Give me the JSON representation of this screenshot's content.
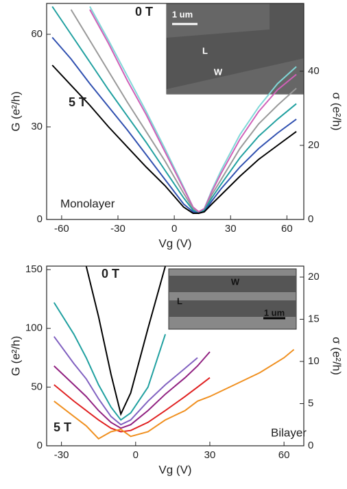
{
  "chart_data": [
    {
      "type": "line",
      "xlabel": "Vg (V)",
      "ylabel": "G (e²/h)",
      "y2label": "σ (e²/h)",
      "xlim": [
        -68,
        69
      ],
      "ylim": [
        0,
        70
      ],
      "y2lim": [
        0,
        58.3
      ],
      "xticks": [
        -60,
        -30,
        0,
        30,
        60
      ],
      "yticks": [
        0,
        30,
        60
      ],
      "y2ticks": [
        0,
        20,
        40
      ],
      "annotations": [
        "0 T",
        "5 T",
        "Monolayer"
      ],
      "inset_labels": [
        "1 um",
        "L",
        "W"
      ],
      "x": [
        -65,
        -55,
        -45,
        -35,
        -25,
        -15,
        -5,
        5,
        10,
        13,
        16,
        20,
        25,
        35,
        45,
        55,
        65
      ],
      "series": [
        {
          "color": "#80d8d8",
          "values": [
            null,
            null,
            69,
            58,
            46.5,
            35,
            23,
            10.5,
            4,
            2.5,
            3.5,
            9.5,
            16,
            27.5,
            36.5,
            44,
            49.5
          ]
        },
        {
          "color": "#d060b8",
          "values": [
            null,
            null,
            68,
            57,
            45,
            34,
            22,
            10,
            4,
            2.5,
            3.5,
            9,
            15,
            26,
            35,
            42,
            47
          ]
        },
        {
          "color": "#999999",
          "values": [
            null,
            68,
            58,
            48,
            38,
            28.5,
            19,
            8.5,
            3.5,
            2,
            3,
            8,
            13,
            23,
            31,
            37,
            42.5
          ]
        },
        {
          "color": "#20a0a0",
          "values": [
            69,
            60,
            51,
            42,
            33.5,
            25,
            16,
            7,
            3,
            2,
            3,
            7,
            11.5,
            20,
            27,
            32.5,
            37.5
          ]
        },
        {
          "color": "#3050b0",
          "values": [
            59,
            52,
            44,
            36.5,
            29,
            21,
            13,
            5,
            2.5,
            2,
            2.5,
            6,
            10,
            17,
            23,
            28,
            32.5
          ]
        },
        {
          "color": "#000000",
          "values": [
            50,
            43.5,
            37,
            30,
            23.5,
            17,
            11,
            4,
            2,
            2,
            2.5,
            5,
            8,
            14,
            19.5,
            24,
            28.5
          ]
        }
      ]
    },
    {
      "type": "line",
      "xlabel": "Vg (V)",
      "ylabel": "G (e²/h)",
      "y2label": "σ (e²/h)",
      "xlim": [
        -36,
        68
      ],
      "ylim": [
        0,
        153
      ],
      "y2lim": [
        0,
        21.3
      ],
      "xticks": [
        -30,
        0,
        30,
        60
      ],
      "yticks": [
        0,
        50,
        100,
        150
      ],
      "y2ticks": [
        0,
        5,
        10,
        15,
        20
      ],
      "annotations": [
        "0 T",
        "5 T",
        "Bilayer"
      ],
      "inset_labels": [
        "W",
        "L",
        "1 um"
      ],
      "x": [
        -33,
        -25,
        -20,
        -15,
        -10,
        -6,
        -2,
        5,
        12,
        20,
        25,
        30,
        40,
        50,
        60,
        64
      ],
      "series": [
        {
          "color": "#000000",
          "values": [
            null,
            null,
            153,
            110,
            61,
            27,
            45,
            100,
            153,
            null,
            null,
            null,
            null,
            null,
            null,
            null
          ]
        },
        {
          "color": "#20a0a0",
          "values": [
            122,
            95,
            75,
            52,
            33,
            22,
            28,
            50,
            95,
            null,
            null,
            null,
            null,
            null,
            null,
            null
          ]
        },
        {
          "color": "#8060c0",
          "values": [
            93,
            70,
            57,
            40,
            25,
            18,
            22,
            38,
            52,
            66,
            75,
            null,
            null,
            null,
            null,
            null
          ]
        },
        {
          "color": "#902080",
          "values": [
            68,
            52,
            42,
            30,
            20,
            15,
            18,
            30,
            44,
            58,
            68,
            80,
            null,
            null,
            null,
            null
          ]
        },
        {
          "color": "#e02020",
          "values": [
            52,
            38,
            30,
            22,
            15,
            12,
            13,
            20,
            30,
            42,
            50,
            58,
            null,
            null,
            null,
            null
          ]
        },
        {
          "color": "#f09020",
          "values": [
            38,
            25,
            17,
            6,
            12,
            14,
            8,
            12,
            22,
            30,
            38,
            42,
            52,
            62,
            75,
            82
          ]
        }
      ]
    }
  ]
}
